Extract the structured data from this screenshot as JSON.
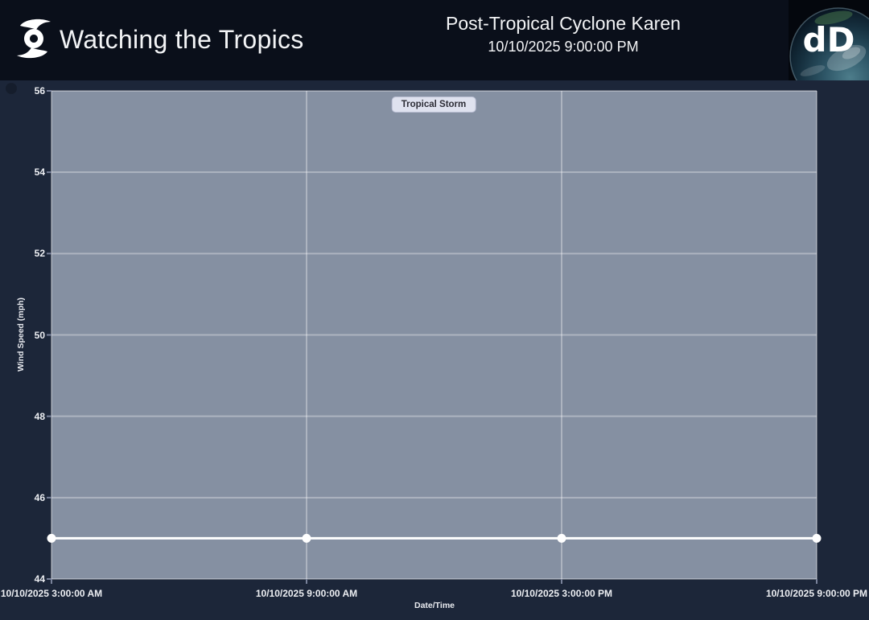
{
  "header": {
    "app_title": "Watching the Tropics",
    "storm": {
      "title": "Post-Tropical Cyclone Karen",
      "datetime": "10/10/2025 9:00:00 PM"
    },
    "logo_text": "dD"
  },
  "chart_data": {
    "type": "line",
    "title": "",
    "xlabel": "Date/Time",
    "ylabel": "Wind Speed (mph)",
    "x": [
      "10/10/2025 3:00:00 AM",
      "10/10/2025 9:00:00 AM",
      "10/10/2025 3:00:00 PM",
      "10/10/2025 9:00:00 PM"
    ],
    "series": [
      {
        "name": "Wind Speed (mph)",
        "color": "#ffffff",
        "values": [
          45,
          45,
          45,
          45
        ]
      }
    ],
    "ylim": [
      44,
      56
    ],
    "yticks": [
      44,
      46,
      48,
      50,
      52,
      54,
      56
    ],
    "annotation": {
      "label": "Tropical Storm"
    },
    "grid": true,
    "legend_position": "none",
    "plot_bg": "#8590a2",
    "grid_color": "rgba(255,255,255,0.33)",
    "tick_color": "#79829a"
  },
  "colors": {
    "header_bg": "#0a0f1a",
    "page_bg": "#1c2639",
    "plot_bg": "#8590a2",
    "line": "#ffffff",
    "annotation_bg": "#dfe2ef",
    "annotation_text": "#2d2d36"
  }
}
